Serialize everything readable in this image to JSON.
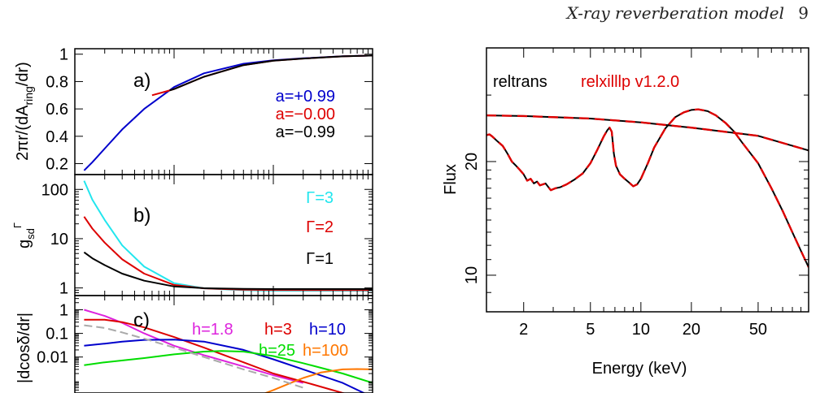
{
  "running_header": {
    "title": "X-ray reverberation model",
    "page_number": "9"
  },
  "chart_data": [
    {
      "id": "panel-a",
      "type": "line",
      "panel_label": "a)",
      "ylabel": "2πr/(dA_ring/dr)",
      "ylabel_main": "2πr/(dA",
      "ylabel_sub": "ring",
      "ylabel_end": "/dr)",
      "ylim": [
        0.12,
        1.04
      ],
      "yscale": "linear",
      "y_ticks": [
        0.2,
        0.4,
        0.6,
        0.8,
        1
      ],
      "y_tick_labels": [
        "0.2",
        "0.4",
        "0.6",
        "0.8",
        "1"
      ],
      "x_range": [
        1,
        1000
      ],
      "xscale": "log",
      "legend_location": "right",
      "series": [
        {
          "name": "a=+0.99",
          "color": "#0000cc",
          "x": [
            1.24,
            1.5,
            2,
            3,
            5,
            10,
            20,
            50,
            100,
            200,
            500,
            1000
          ],
          "y": [
            0.15,
            0.21,
            0.31,
            0.45,
            0.6,
            0.76,
            0.86,
            0.93,
            0.955,
            0.97,
            0.985,
            0.99
          ]
        },
        {
          "name": "a=−0.00",
          "color": "#dd0000",
          "x": [
            6,
            8,
            10,
            20,
            50,
            100,
            200,
            500,
            1000
          ],
          "y": [
            0.7,
            0.725,
            0.745,
            0.835,
            0.92,
            0.952,
            0.968,
            0.984,
            0.99
          ]
        },
        {
          "name": "a=−0.99",
          "color": "#000000",
          "x": [
            9,
            10,
            20,
            50,
            100,
            200,
            500,
            1000
          ],
          "y": [
            0.735,
            0.745,
            0.835,
            0.92,
            0.952,
            0.968,
            0.984,
            0.99
          ]
        }
      ]
    },
    {
      "id": "panel-b",
      "type": "line",
      "panel_label": "b)",
      "ylabel": "g_sd^Γ",
      "ylabel_main": "g",
      "ylabel_sub": "sd",
      "ylabel_sup": "Γ",
      "ylim": [
        0.7,
        200
      ],
      "yscale": "log",
      "y_ticks": [
        1,
        10,
        100
      ],
      "y_tick_labels": [
        "1",
        "10",
        "100"
      ],
      "x_range": [
        1,
        1000
      ],
      "xscale": "log",
      "legend_location": "right",
      "series": [
        {
          "name": "Γ=3",
          "color": "#22e6ee",
          "x": [
            1.24,
            1.5,
            2,
            3,
            5,
            10,
            20,
            50,
            100,
            1000
          ],
          "y": [
            150,
            62,
            24,
            7.3,
            2.7,
            1.25,
            0.98,
            0.9,
            0.88,
            0.88
          ]
        },
        {
          "name": "Γ=2",
          "color": "#dd0000",
          "x": [
            1.24,
            1.5,
            2,
            3,
            5,
            10,
            20,
            50,
            100,
            1000
          ],
          "y": [
            28,
            16,
            8.3,
            3.8,
            1.95,
            1.15,
            0.98,
            0.92,
            0.91,
            0.9
          ]
        },
        {
          "name": "Γ=1",
          "color": "#000000",
          "x": [
            1.24,
            1.5,
            2,
            3,
            5,
            10,
            20,
            50,
            100,
            1000
          ],
          "y": [
            5.3,
            4.0,
            2.9,
            1.95,
            1.4,
            1.07,
            0.99,
            0.96,
            0.95,
            0.95
          ]
        }
      ]
    },
    {
      "id": "panel-c",
      "type": "line",
      "panel_label": "c)",
      "ylabel": "|dcosδ/dr|",
      "ylim": [
        0.0003,
        4
      ],
      "yscale": "log",
      "y_ticks": [
        0.01,
        0.1,
        1
      ],
      "y_tick_labels": [
        "0.01",
        "0.1",
        "1"
      ],
      "x_range": [
        1,
        1000
      ],
      "xscale": "log",
      "legend_location": "top",
      "series": [
        {
          "name": "h=1.8",
          "color": "#dd22dd",
          "x": [
            1.24,
            2,
            3,
            5,
            10,
            20,
            50,
            100,
            200
          ],
          "y": [
            1.0,
            0.55,
            0.28,
            0.1,
            0.03,
            0.012,
            0.004,
            0.0017,
            0.0008
          ]
        },
        {
          "name": "h=3",
          "color": "#dd0000",
          "x": [
            1.24,
            2,
            3,
            5,
            10,
            20,
            50,
            100,
            200,
            500,
            1000
          ],
          "y": [
            0.38,
            0.38,
            0.3,
            0.18,
            0.07,
            0.025,
            0.006,
            0.002,
            0.0009,
            0.0003,
            0.00015
          ]
        },
        {
          "name": "h=10",
          "color": "#0000cc",
          "x": [
            1.24,
            2,
            3,
            5,
            10,
            20,
            50,
            100,
            200,
            500,
            1000
          ],
          "y": [
            0.03,
            0.037,
            0.045,
            0.053,
            0.055,
            0.045,
            0.02,
            0.008,
            0.003,
            0.0008,
            0.0002
          ]
        },
        {
          "name": "h=25",
          "color": "#00dd00",
          "x": [
            1.24,
            2,
            5,
            10,
            20,
            30,
            50,
            100,
            200,
            500,
            1000
          ],
          "y": [
            0.0045,
            0.006,
            0.009,
            0.013,
            0.017,
            0.018,
            0.017,
            0.011,
            0.0055,
            0.002,
            0.0008
          ]
        },
        {
          "name": "h=100",
          "color": "#ff7700",
          "x": [
            60,
            80,
            100,
            150,
            200,
            300,
            500,
            700,
            1000
          ],
          "y": [
            0.00018,
            0.00028,
            0.0004,
            0.0008,
            0.0013,
            0.0022,
            0.003,
            0.0031,
            0.003
          ]
        },
        {
          "name": "",
          "color": "#aaaaaa",
          "x": [
            1.24,
            2,
            3,
            5,
            10,
            20,
            50,
            100,
            200
          ],
          "y": [
            0.22,
            0.17,
            0.11,
            0.06,
            0.025,
            0.01,
            0.003,
            0.0013,
            0.0005
          ]
        }
      ]
    },
    {
      "id": "spectrum",
      "type": "line",
      "xlabel": "Energy (keV)",
      "ylabel": "Flux",
      "xscale": "log",
      "yscale": "log",
      "xlim": [
        1.2,
        100
      ],
      "ylim": [
        8,
        40
      ],
      "x_ticks": [
        2,
        5,
        10,
        20,
        50
      ],
      "x_tick_labels": [
        "2",
        "5",
        "10",
        "20",
        "50"
      ],
      "y_ticks": [
        10,
        20
      ],
      "y_tick_labels": [
        "10",
        "20"
      ],
      "legend_location": "top-left",
      "series": [
        {
          "name": "reltrans",
          "color": "#000000",
          "role": "continuum",
          "x": [
            1.2,
            2,
            5,
            10,
            20,
            50,
            100
          ],
          "y": [
            26.5,
            26.4,
            26.0,
            25.4,
            24.6,
            23.4,
            21.4
          ]
        },
        {
          "name": "reltrans",
          "color": "#000000",
          "role": "reflection",
          "x": [
            1.2,
            1.25,
            1.3,
            1.4,
            1.5,
            1.6,
            1.7,
            1.8,
            1.9,
            2.0,
            2.1,
            2.2,
            2.3,
            2.4,
            2.5,
            2.7,
            2.9,
            3.1,
            3.3,
            3.6,
            4.0,
            4.5,
            5.0,
            5.5,
            6.0,
            6.3,
            6.5,
            6.7,
            6.9,
            7.1,
            7.5,
            8.0,
            8.5,
            9.0,
            9.5,
            10.0,
            11,
            12,
            14,
            16,
            18,
            20,
            22,
            25,
            28,
            32,
            36,
            40,
            50,
            60,
            70,
            80,
            90,
            100
          ],
          "y": [
            23.5,
            23.6,
            23.3,
            22.6,
            22.0,
            21.0,
            20.0,
            19.5,
            19.0,
            18.5,
            17.8,
            18.0,
            17.5,
            17.7,
            17.3,
            17.5,
            16.8,
            17.0,
            17.1,
            17.4,
            17.9,
            18.6,
            19.8,
            21.5,
            23.3,
            24.2,
            24.6,
            24.0,
            21.0,
            19.5,
            18.5,
            18.0,
            17.6,
            17.2,
            17.4,
            18.0,
            19.8,
            21.8,
            24.5,
            26.2,
            27.0,
            27.4,
            27.5,
            27.2,
            26.5,
            25.3,
            24.0,
            22.5,
            19.8,
            17.0,
            14.8,
            13.0,
            11.6,
            10.5
          ]
        },
        {
          "name": "relxilllp v1.2.0",
          "color": "#dd0000",
          "role": "continuum",
          "dashed": true,
          "x": [
            1.2,
            2,
            5,
            10,
            20,
            50,
            100
          ],
          "y": [
            26.5,
            26.4,
            26.0,
            25.4,
            24.6,
            23.4,
            21.4
          ]
        },
        {
          "name": "relxilllp v1.2.0",
          "color": "#dd0000",
          "role": "reflection",
          "dashed": true,
          "x": [
            1.2,
            1.25,
            1.3,
            1.4,
            1.5,
            1.6,
            1.7,
            1.8,
            1.9,
            2.0,
            2.1,
            2.2,
            2.3,
            2.4,
            2.5,
            2.7,
            2.9,
            3.1,
            3.3,
            3.6,
            4.0,
            4.5,
            5.0,
            5.5,
            6.0,
            6.3,
            6.5,
            6.7,
            6.9,
            7.1,
            7.5,
            8.0,
            8.5,
            9.0,
            9.5,
            10.0,
            11,
            12,
            14,
            16,
            18,
            20,
            22,
            25,
            28,
            32,
            36,
            40,
            50,
            60,
            70,
            80,
            90,
            100
          ],
          "y": [
            23.5,
            23.6,
            23.3,
            22.6,
            22.0,
            21.0,
            20.0,
            19.5,
            19.0,
            18.5,
            17.8,
            18.0,
            17.5,
            17.7,
            17.3,
            17.5,
            16.8,
            17.0,
            17.1,
            17.4,
            17.9,
            18.6,
            19.8,
            21.5,
            23.3,
            24.2,
            24.6,
            24.0,
            21.0,
            19.5,
            18.5,
            18.0,
            17.6,
            17.2,
            17.4,
            18.0,
            19.8,
            21.8,
            24.5,
            26.2,
            27.0,
            27.4,
            27.5,
            27.2,
            26.5,
            25.3,
            24.0,
            22.5,
            19.8,
            17.0,
            14.8,
            13.0,
            11.6,
            10.5
          ]
        }
      ]
    }
  ]
}
